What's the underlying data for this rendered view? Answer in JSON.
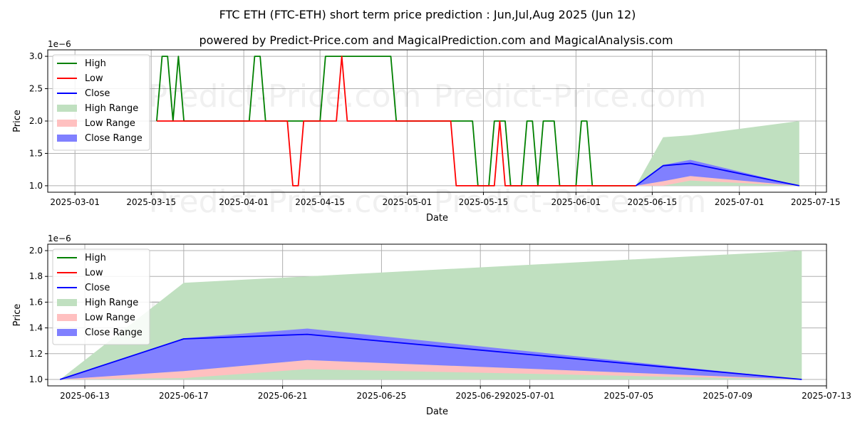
{
  "title": "FTC ETH (FTC-ETH) short term price prediction : Jun,Jul,Aug 2025 (Jun 12)",
  "subtitle": "powered by Predict-Price.com and MagicalPrediction.com and MagicalAnalysis.com",
  "watermark": "Predict-Price.com",
  "colors": {
    "high": "#008000",
    "low": "#ff0000",
    "close": "#0000ff",
    "high_range": "#c0e0c0",
    "low_range": "#ffc0c0",
    "close_range": "#8080ff"
  },
  "legend": {
    "placement": "upper-left",
    "items": [
      {
        "label": "High",
        "kind": "line",
        "color": "#008000"
      },
      {
        "label": "Low",
        "kind": "line",
        "color": "#ff0000"
      },
      {
        "label": "Close",
        "kind": "line",
        "color": "#0000ff"
      },
      {
        "label": "High Range",
        "kind": "patch",
        "color": "#c0e0c0"
      },
      {
        "label": "Low Range",
        "kind": "patch",
        "color": "#ffc0c0"
      },
      {
        "label": "Close Range",
        "kind": "patch",
        "color": "#8080ff"
      }
    ]
  },
  "chart_data": [
    {
      "type": "line",
      "xlabel": "Date",
      "ylabel": "Price",
      "y_multiplier": "1e−6",
      "grid": true,
      "xlim": [
        "2025-02-24",
        "2025-07-17"
      ],
      "ylim": [
        0.9,
        3.1
      ],
      "x_ticks": [
        "2025-03-01",
        "2025-03-15",
        "2025-04-01",
        "2025-04-15",
        "2025-05-01",
        "2025-05-15",
        "2025-06-01",
        "2025-06-15",
        "2025-07-01",
        "2025-07-15"
      ],
      "y_ticks": [
        1.0,
        1.5,
        2.0,
        2.5,
        3.0
      ],
      "y_tick_labels": [
        "1.0",
        "1.5",
        "2.0",
        "2.5",
        "3.0"
      ],
      "series": [
        {
          "name": "High",
          "points": [
            [
              "2025-03-16",
              2.0
            ],
            [
              "2025-03-17",
              3.0
            ],
            [
              "2025-03-18",
              3.0
            ],
            [
              "2025-03-19",
              2.0
            ],
            [
              "2025-03-20",
              3.0
            ],
            [
              "2025-03-21",
              2.0
            ],
            [
              "2025-04-02",
              2.0
            ],
            [
              "2025-04-03",
              3.0
            ],
            [
              "2025-04-04",
              3.0
            ],
            [
              "2025-04-05",
              2.0
            ],
            [
              "2025-04-15",
              2.0
            ],
            [
              "2025-04-16",
              3.0
            ],
            [
              "2025-04-27",
              3.0
            ],
            [
              "2025-04-28",
              3.0
            ],
            [
              "2025-04-29",
              2.0
            ],
            [
              "2025-05-09",
              2.0
            ],
            [
              "2025-05-13",
              2.0
            ],
            [
              "2025-05-14",
              1.0
            ],
            [
              "2025-05-16",
              1.0
            ],
            [
              "2025-05-17",
              2.0
            ],
            [
              "2025-05-19",
              2.0
            ],
            [
              "2025-05-20",
              1.0
            ],
            [
              "2025-05-22",
              1.0
            ],
            [
              "2025-05-23",
              2.0
            ],
            [
              "2025-05-24",
              2.0
            ],
            [
              "2025-05-25",
              1.0
            ],
            [
              "2025-05-26",
              2.0
            ],
            [
              "2025-05-28",
              2.0
            ],
            [
              "2025-05-29",
              1.0
            ],
            [
              "2025-06-01",
              1.0
            ],
            [
              "2025-06-02",
              2.0
            ],
            [
              "2025-06-03",
              2.0
            ],
            [
              "2025-06-04",
              1.0
            ],
            [
              "2025-06-12",
              1.0
            ]
          ]
        },
        {
          "name": "Low",
          "points": [
            [
              "2025-03-16",
              2.0
            ],
            [
              "2025-04-09",
              2.0
            ],
            [
              "2025-04-10",
              1.0
            ],
            [
              "2025-04-11",
              1.0
            ],
            [
              "2025-04-12",
              2.0
            ],
            [
              "2025-04-18",
              2.0
            ],
            [
              "2025-04-19",
              3.0
            ],
            [
              "2025-04-20",
              2.0
            ],
            [
              "2025-05-09",
              2.0
            ],
            [
              "2025-05-10",
              1.0
            ],
            [
              "2025-05-17",
              1.0
            ],
            [
              "2025-05-18",
              2.0
            ],
            [
              "2025-05-19",
              1.0
            ],
            [
              "2025-06-12",
              1.0
            ]
          ]
        },
        {
          "name": "Close",
          "points": [
            [
              "2025-06-12",
              1.0
            ],
            [
              "2025-06-17",
              1.31
            ],
            [
              "2025-06-22",
              1.345
            ],
            [
              "2025-07-12",
              1.0
            ]
          ]
        },
        {
          "name": "High Range",
          "points_upper": [
            [
              "2025-06-12",
              1.0
            ],
            [
              "2025-06-17",
              1.75
            ],
            [
              "2025-06-22",
              1.78
            ],
            [
              "2025-07-12",
              2.0
            ]
          ],
          "points_lower": [
            [
              "2025-06-12",
              1.0
            ],
            [
              "2025-06-17",
              1.0
            ],
            [
              "2025-06-22",
              1.0
            ],
            [
              "2025-07-12",
              1.0
            ]
          ]
        },
        {
          "name": "Low Range",
          "points_upper": [
            [
              "2025-06-12",
              1.0
            ],
            [
              "2025-06-17",
              1.07
            ],
            [
              "2025-06-22",
              1.15
            ],
            [
              "2025-07-12",
              1.0
            ]
          ],
          "points_lower": [
            [
              "2025-06-12",
              1.0
            ],
            [
              "2025-06-17",
              1.0
            ],
            [
              "2025-06-22",
              1.08
            ],
            [
              "2025-07-12",
              1.0
            ]
          ]
        },
        {
          "name": "Close Range",
          "points_upper": [
            [
              "2025-06-12",
              1.0
            ],
            [
              "2025-06-17",
              1.32
            ],
            [
              "2025-06-22",
              1.4
            ],
            [
              "2025-07-12",
              1.0
            ]
          ],
          "points_lower": [
            [
              "2025-06-12",
              1.0
            ],
            [
              "2025-06-17",
              1.07
            ],
            [
              "2025-06-22",
              1.15
            ],
            [
              "2025-07-12",
              1.0
            ]
          ]
        }
      ]
    },
    {
      "type": "line",
      "xlabel": "Date",
      "ylabel": "Price",
      "y_multiplier": "1e−6",
      "grid": true,
      "xlim": [
        "2025-06-11.5",
        "2025-07-13.0"
      ],
      "ylim": [
        0.95,
        2.05
      ],
      "x_ticks": [
        "2025-06-13",
        "2025-06-17",
        "2025-06-21",
        "2025-06-25",
        "2025-06-29",
        "2025-07-01",
        "2025-07-05",
        "2025-07-09",
        "2025-07-13"
      ],
      "y_ticks": [
        1.0,
        1.2,
        1.4,
        1.6,
        1.8,
        2.0
      ],
      "y_tick_labels": [
        "1.0",
        "1.2",
        "1.4",
        "1.6",
        "1.8",
        "2.0"
      ],
      "series": [
        {
          "name": "Close",
          "points": [
            [
              "2025-06-12",
              1.0
            ],
            [
              "2025-06-17",
              1.315
            ],
            [
              "2025-06-22",
              1.35
            ],
            [
              "2025-07-12",
              1.0
            ]
          ]
        },
        {
          "name": "High Range",
          "points_upper": [
            [
              "2025-06-12",
              1.0
            ],
            [
              "2025-06-17",
              1.75
            ],
            [
              "2025-06-22",
              1.8
            ],
            [
              "2025-07-12",
              2.0
            ]
          ],
          "points_lower": [
            [
              "2025-06-12",
              1.0
            ],
            [
              "2025-06-17",
              1.0
            ],
            [
              "2025-06-22",
              1.0
            ],
            [
              "2025-07-12",
              1.0
            ]
          ]
        },
        {
          "name": "Low Range",
          "points_upper": [
            [
              "2025-06-12",
              1.0
            ],
            [
              "2025-06-17",
              1.065
            ],
            [
              "2025-06-22",
              1.15
            ],
            [
              "2025-07-12",
              1.0
            ]
          ],
          "points_lower": [
            [
              "2025-06-12",
              1.0
            ],
            [
              "2025-06-17",
              1.01
            ],
            [
              "2025-06-22",
              1.08
            ],
            [
              "2025-07-12",
              1.0
            ]
          ]
        },
        {
          "name": "Close Range",
          "points_upper": [
            [
              "2025-06-12",
              1.0
            ],
            [
              "2025-06-17",
              1.32
            ],
            [
              "2025-06-22",
              1.395
            ],
            [
              "2025-07-12",
              1.0
            ]
          ],
          "points_lower": [
            [
              "2025-06-12",
              1.0
            ],
            [
              "2025-06-17",
              1.065
            ],
            [
              "2025-06-22",
              1.15
            ],
            [
              "2025-07-12",
              1.0
            ]
          ]
        }
      ]
    }
  ]
}
